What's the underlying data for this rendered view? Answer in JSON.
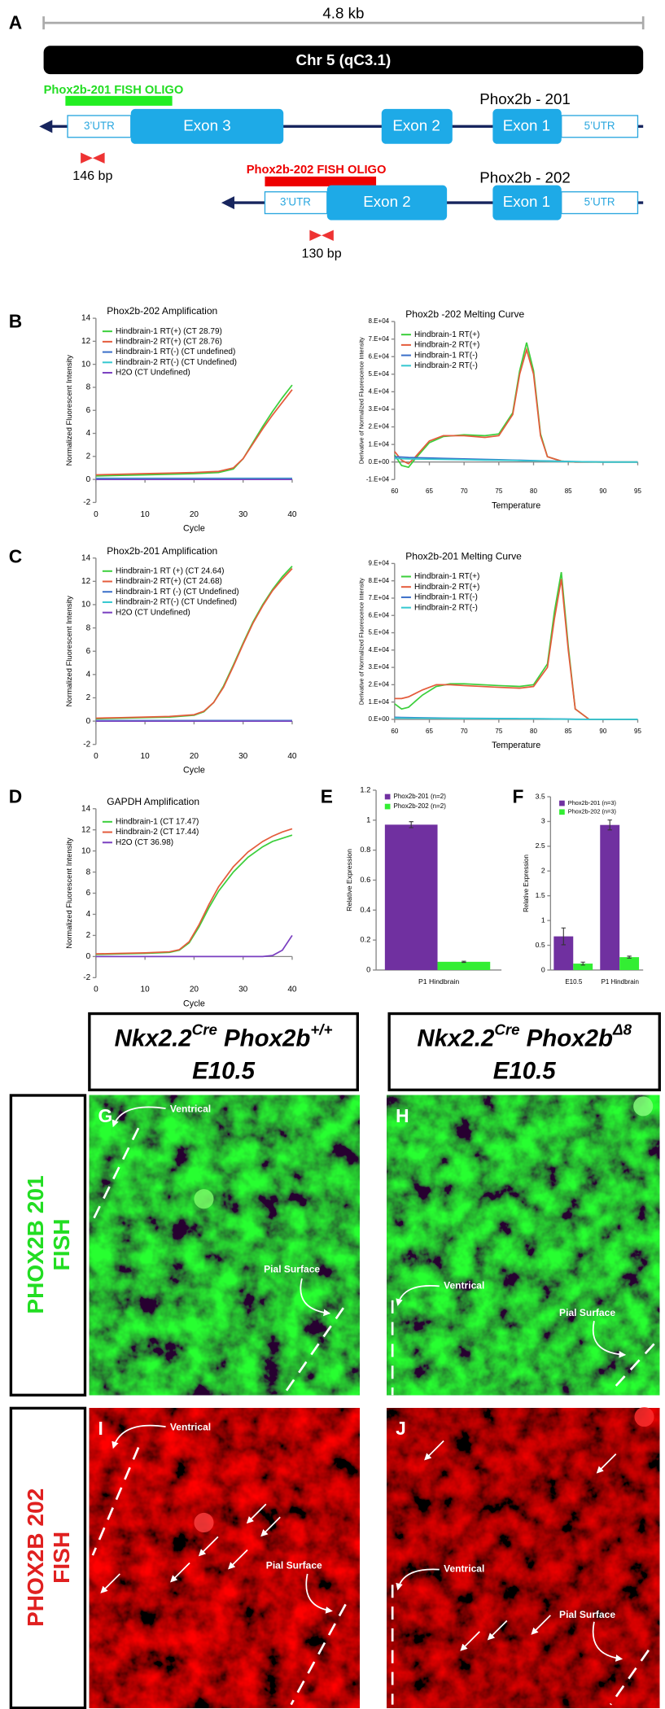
{
  "panels": [
    "A",
    "B",
    "C",
    "D",
    "E",
    "F"
  ],
  "diagram": {
    "scale_label": "4.8 kb",
    "chromosome": "Chr 5 (qC3.1)",
    "transcripts": [
      {
        "name": "Phox2b - 201",
        "oligo": "Phox2b-201 FISH OLIGO",
        "product": "146 bp",
        "features": [
          "3’UTR",
          "Exon 3",
          "Exon 2",
          "Exon 1",
          "5’UTR"
        ]
      },
      {
        "name": "Phox2b - 202",
        "oligo": "Phox2b-202 FISH OLIGO",
        "product": "130 bp",
        "features": [
          "3’UTR",
          "Exon 2",
          "Exon 1",
          "5’UTR"
        ]
      }
    ]
  },
  "chart_data": [
    {
      "type": "line",
      "title": "Phox2b-202 Amplification",
      "xlabel": "Cycle",
      "ylabel": "Normalized Fluorescent Intensity",
      "xlim": [
        0,
        40
      ],
      "xticks": [
        0,
        10,
        20,
        30,
        40
      ],
      "ylim": [
        -2,
        14
      ],
      "yticks": [
        -2,
        0,
        2,
        4,
        6,
        8,
        10,
        12,
        14
      ],
      "x": [
        0,
        5,
        10,
        15,
        20,
        25,
        28,
        30,
        32,
        34,
        36,
        38,
        40
      ],
      "series": [
        {
          "name": "Hindbrain-1 RT(+) (CT 28.79)",
          "color": "#3ccf3c",
          "values": [
            0.3,
            0.35,
            0.4,
            0.45,
            0.5,
            0.6,
            0.9,
            1.8,
            3.2,
            4.6,
            5.9,
            7.1,
            8.2
          ]
        },
        {
          "name": "Hindbrain-2 RT(+) (CT 28.76)",
          "color": "#e45c3c",
          "values": [
            0.4,
            0.45,
            0.5,
            0.55,
            0.6,
            0.7,
            1.0,
            1.8,
            3.1,
            4.4,
            5.6,
            6.7,
            7.8
          ]
        },
        {
          "name": "Hindbrain-1 RT(-) (CT undefined)",
          "color": "#3a6fc9",
          "values": [
            0.1,
            0.1,
            0.1,
            0.1,
            0.1,
            0.1,
            0.1,
            0.1,
            0.1,
            0.1,
            0.1,
            0.1,
            0.1
          ]
        },
        {
          "name": "Hindbrain-2 RT(-) (CT Undefined)",
          "color": "#35c8d0",
          "values": [
            0.05,
            0.05,
            0.05,
            0.05,
            0.05,
            0.05,
            0.05,
            0.05,
            0.05,
            0.05,
            0.05,
            0.05,
            0.05
          ]
        },
        {
          "name": "H2O (CT Undefined)",
          "color": "#7a3fc0",
          "values": [
            0,
            0,
            0,
            0,
            0,
            0,
            0,
            0,
            0,
            0,
            0,
            0,
            0
          ]
        }
      ]
    },
    {
      "type": "line",
      "title": "Phox2b -202 Melting Curve",
      "xlabel": "Temperature",
      "ylabel": "Derivative of Normalized Fluorescence Intensity",
      "xlim": [
        60,
        95
      ],
      "xticks": [
        60,
        65,
        70,
        75,
        80,
        85,
        90,
        95
      ],
      "ylim": [
        -10000,
        80000
      ],
      "yticks": [
        {
          "value": -10000,
          "label": "-1.E+04"
        },
        {
          "value": 0,
          "label": "0.E+00"
        },
        {
          "value": 10000,
          "label": "1.E+04"
        },
        {
          "value": 20000,
          "label": "2.E+04"
        },
        {
          "value": 30000,
          "label": "3.E+04"
        },
        {
          "value": 40000,
          "label": "4.E+04"
        },
        {
          "value": 50000,
          "label": "5.E+04"
        },
        {
          "value": 60000,
          "label": "6.E+04"
        },
        {
          "value": 70000,
          "label": "7.E+04"
        },
        {
          "value": 80000,
          "label": "8.E+04"
        }
      ],
      "x": [
        60,
        61,
        62,
        63,
        65,
        67,
        70,
        73,
        75,
        77,
        78,
        79,
        80,
        81,
        82,
        84,
        86,
        90,
        95
      ],
      "series": [
        {
          "name": "Hindbrain-1 RT(+)",
          "color": "#3ccf3c",
          "values": [
            4000,
            -2000,
            -3000,
            2000,
            11000,
            14500,
            15500,
            15000,
            16000,
            28000,
            52000,
            68000,
            52000,
            16000,
            3000,
            500,
            0,
            0,
            0
          ]
        },
        {
          "name": "Hindbrain-2 RT(+)",
          "color": "#e45c3c",
          "values": [
            6000,
            1000,
            -1000,
            3000,
            12000,
            15000,
            15000,
            14000,
            15000,
            27000,
            50000,
            64000,
            50000,
            15000,
            3000,
            500,
            0,
            0,
            0
          ]
        },
        {
          "name": "Hindbrain-1 RT(-)",
          "color": "#3a6fc9",
          "values": [
            3000,
            2800,
            2600,
            2500,
            2300,
            2100,
            1800,
            1500,
            1300,
            1100,
            1000,
            900,
            800,
            700,
            600,
            400,
            200,
            0,
            0
          ]
        },
        {
          "name": "Hindbrain-2 RT(-)",
          "color": "#35c8d0",
          "values": [
            2000,
            1900,
            1800,
            1700,
            1600,
            1500,
            1300,
            1100,
            1000,
            900,
            800,
            700,
            650,
            600,
            500,
            350,
            200,
            0,
            0
          ]
        }
      ]
    },
    {
      "type": "line",
      "title": "Phox2b-201 Amplification",
      "xlabel": "Cycle",
      "ylabel": "Normalized Fluorescent Intensity",
      "xlim": [
        0,
        40
      ],
      "xticks": [
        0,
        10,
        20,
        30,
        40
      ],
      "ylim": [
        -2,
        14
      ],
      "yticks": [
        -2,
        0,
        2,
        4,
        6,
        8,
        10,
        12,
        14
      ],
      "x": [
        0,
        5,
        10,
        15,
        20,
        22,
        24,
        26,
        28,
        30,
        32,
        34,
        36,
        38,
        40
      ],
      "series": [
        {
          "name": "Hindbrain-1 RT (+) (CT 24.64)",
          "color": "#3ccf3c",
          "values": [
            0.2,
            0.25,
            0.3,
            0.35,
            0.5,
            0.8,
            1.6,
            3.0,
            4.8,
            6.7,
            8.5,
            10.0,
            11.3,
            12.4,
            13.3
          ]
        },
        {
          "name": "Hindbrain-2 RT(+) (CT 24.68)",
          "color": "#e45c3c",
          "values": [
            0.25,
            0.3,
            0.35,
            0.4,
            0.55,
            0.85,
            1.6,
            2.9,
            4.7,
            6.6,
            8.4,
            9.9,
            11.2,
            12.2,
            13.1
          ]
        },
        {
          "name": "Hindbrain-1 RT (-) (CT Undefined)",
          "color": "#3a6fc9",
          "values": [
            0.05,
            0.05,
            0.05,
            0.05,
            0.05,
            0.05,
            0.05,
            0.05,
            0.05,
            0.05,
            0.05,
            0.05,
            0.05,
            0.05,
            0.05
          ]
        },
        {
          "name": "Hindbrain-2 RT(-) (CT Undefined)",
          "color": "#35c8d0",
          "values": [
            0.02,
            0.02,
            0.02,
            0.02,
            0.02,
            0.02,
            0.02,
            0.02,
            0.02,
            0.02,
            0.02,
            0.02,
            0.02,
            0.02,
            0.02
          ]
        },
        {
          "name": "H2O (CT Undefined)",
          "color": "#7a3fc0",
          "values": [
            0,
            0,
            0,
            0,
            0,
            0,
            0,
            0,
            0,
            0,
            0,
            0,
            0,
            0,
            0
          ]
        }
      ]
    },
    {
      "type": "line",
      "title": "Phox2b-201  Melting Curve",
      "xlabel": "Temperature",
      "ylabel": "Derivative of Normalized Fluorescence Intensity",
      "xlim": [
        60,
        95
      ],
      "xticks": [
        60,
        65,
        70,
        75,
        80,
        85,
        90,
        95
      ],
      "ylim": [
        0,
        90000
      ],
      "yticks": [
        {
          "value": 0,
          "label": "0.E+00"
        },
        {
          "value": 10000,
          "label": "1.E+04"
        },
        {
          "value": 20000,
          "label": "2.E+04"
        },
        {
          "value": 30000,
          "label": "3.E+04"
        },
        {
          "value": 40000,
          "label": "4.E+04"
        },
        {
          "value": 50000,
          "label": "5.E+04"
        },
        {
          "value": 60000,
          "label": "6.E+04"
        },
        {
          "value": 70000,
          "label": "7.E+04"
        },
        {
          "value": 80000,
          "label": "8.E+04"
        },
        {
          "value": 90000,
          "label": "9.E+04"
        }
      ],
      "x": [
        60,
        61,
        62,
        64,
        66,
        68,
        70,
        75,
        78,
        80,
        82,
        83,
        84,
        85,
        86,
        88,
        95
      ],
      "series": [
        {
          "name": "Hindbrain-1 RT(+)",
          "color": "#3ccf3c",
          "values": [
            9000,
            6000,
            7000,
            14000,
            19000,
            20500,
            20500,
            19500,
            19000,
            20000,
            32000,
            62000,
            85000,
            42000,
            6000,
            0,
            0
          ]
        },
        {
          "name": "Hindbrain-2 RT(+)",
          "color": "#e45c3c",
          "values": [
            12000,
            12000,
            13000,
            17000,
            20000,
            20000,
            19500,
            18500,
            18000,
            19000,
            30000,
            58000,
            81000,
            40000,
            6000,
            0,
            0
          ]
        },
        {
          "name": "Hindbrain-1 RT(-)",
          "color": "#3a6fc9",
          "values": [
            1200,
            1100,
            1000,
            900,
            800,
            700,
            600,
            500,
            400,
            350,
            300,
            250,
            200,
            150,
            100,
            0,
            0
          ]
        },
        {
          "name": "Hindbrain-2 RT(-)",
          "color": "#35c8d0",
          "values": [
            800,
            750,
            700,
            650,
            600,
            550,
            500,
            400,
            350,
            300,
            250,
            200,
            150,
            100,
            50,
            0,
            0
          ]
        }
      ]
    },
    {
      "type": "line",
      "title": "GAPDH Amplification",
      "xlabel": "Cycle",
      "ylabel": "Normalized Fluorescent Intensity",
      "xlim": [
        0,
        40
      ],
      "xticks": [
        0,
        10,
        20,
        30,
        40
      ],
      "ylim": [
        -2,
        14
      ],
      "yticks": [
        -2,
        0,
        2,
        4,
        6,
        8,
        10,
        12,
        14
      ],
      "x": [
        0,
        5,
        10,
        15,
        17,
        19,
        21,
        23,
        25,
        28,
        31,
        34,
        36,
        38,
        40
      ],
      "series": [
        {
          "name": "Hindbrain-1 (CT 17.47)",
          "color": "#3ccf3c",
          "values": [
            0.2,
            0.25,
            0.3,
            0.4,
            0.6,
            1.3,
            2.8,
            4.6,
            6.2,
            8.0,
            9.4,
            10.4,
            10.9,
            11.2,
            11.5
          ]
        },
        {
          "name": "Hindbrain-2 (CT 17.44)",
          "color": "#e45c3c",
          "values": [
            0.25,
            0.3,
            0.35,
            0.45,
            0.65,
            1.4,
            3.0,
            4.9,
            6.6,
            8.5,
            9.9,
            10.9,
            11.4,
            11.8,
            12.1
          ]
        },
        {
          "name": "H2O (CT 36.98)",
          "color": "#7a3fc0",
          "values": [
            0,
            0,
            0,
            0,
            0,
            0,
            0,
            0,
            0,
            0,
            0,
            0,
            0.1,
            0.6,
            2.0
          ]
        }
      ]
    },
    {
      "type": "bar",
      "ylabel": "Relative Expression",
      "categories": [
        "P1 Hindbrain"
      ],
      "ylim": [
        0,
        1.2
      ],
      "yticks": [
        0,
        0.2,
        0.4,
        0.6,
        0.8,
        1,
        1.2
      ],
      "series": [
        {
          "name": "Phox2b-201 (n=2)",
          "color": "#7030a0",
          "values": [
            0.97
          ],
          "errors": [
            0.02
          ]
        },
        {
          "name": "Phox2b-202 (n=2)",
          "color": "#33ee33",
          "values": [
            0.055
          ],
          "errors": [
            0.004
          ]
        }
      ]
    },
    {
      "type": "bar",
      "ylabel": "Relative Expression",
      "categories": [
        "E10.5",
        "P1 Hindbrain"
      ],
      "ylim": [
        0,
        3.5
      ],
      "yticks": [
        0,
        0.5,
        1,
        1.5,
        2,
        2.5,
        3,
        3.5
      ],
      "series": [
        {
          "name": "Phox2b-201 (n=3)",
          "color": "#7030a0",
          "values": [
            0.68,
            2.93
          ],
          "errors": [
            0.17,
            0.1
          ]
        },
        {
          "name": "Phox2b-202 (n=3)",
          "color": "#33ee33",
          "values": [
            0.13,
            0.26
          ],
          "errors": [
            0.03,
            0.02
          ]
        }
      ]
    }
  ],
  "images": {
    "columns": [
      {
        "gene": "Nkx2.2",
        "gene_sup": "Cre",
        "allele": "Phox2b",
        "allele_sup": "+/+",
        "stage": "E10.5"
      },
      {
        "gene": "Nkx2.2",
        "gene_sup": "Cre",
        "allele": "Phox2b",
        "allele_sup": "Δ8",
        "stage": "E10.5"
      }
    ],
    "rows": [
      [
        "PHOX2B 201",
        "FISH"
      ],
      [
        "PHOX2B 202",
        "FISH"
      ]
    ],
    "panels": [
      {
        "letter": "G",
        "labels": [
          "Ventrical",
          "Pial Surface"
        ]
      },
      {
        "letter": "H",
        "labels": [
          "Ventrical",
          "Pial Surface"
        ]
      },
      {
        "letter": "I",
        "labels": [
          "Ventrical",
          "Pial Surface"
        ]
      },
      {
        "letter": "J",
        "labels": [
          "Ventrical",
          "Pial Surface"
        ]
      }
    ]
  }
}
